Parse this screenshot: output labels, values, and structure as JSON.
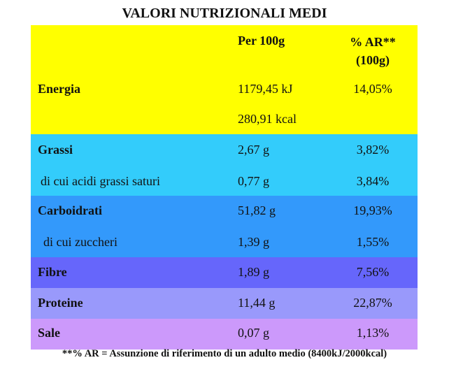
{
  "title": "VALORI NUTRIZIONALI MEDI",
  "table": {
    "header": [
      "Per 100g",
      "% AR** (100g)"
    ],
    "rows": [
      {
        "label": "Energia",
        "per_100g": [
          "1179,45 kJ",
          "280,91 kcal"
        ],
        "ar": "14,05%"
      },
      {
        "label": "Grassi",
        "per_100g": [
          "2,67 g"
        ],
        "ar": "3,82%"
      },
      {
        "label": "di cui acidi grassi saturi",
        "per_100g": [
          "0,77 g"
        ],
        "ar": "3,84%"
      },
      {
        "label": "Carboidrati",
        "per_100g": [
          "51,82 g"
        ],
        "ar": "19,93%"
      },
      {
        "label": "di cui zuccheri",
        "per_100g": [
          "1,39 g"
        ],
        "ar": "1,55%"
      },
      {
        "label": "Fibre",
        "per_100g": [
          "1,89 g"
        ],
        "ar": "7,56%"
      },
      {
        "label": "Proteine",
        "per_100g": [
          "11,44 g"
        ],
        "ar": "22,87%"
      },
      {
        "label": "Sale",
        "per_100g": [
          "0,07 g"
        ],
        "ar": "1,13%"
      }
    ]
  },
  "footnote": "**% AR = Assunzione di riferimento di un adulto medio (8400kJ/2000kcal)"
}
